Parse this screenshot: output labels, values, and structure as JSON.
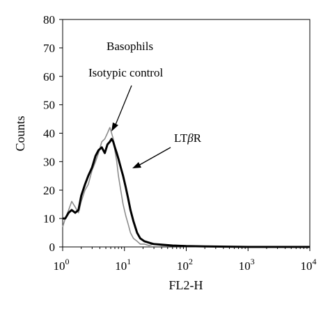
{
  "chart_data": {
    "type": "line",
    "xlabel": "FL2-H",
    "ylabel": "Counts",
    "x_scale": "log",
    "xlim": [
      1,
      10000
    ],
    "ylim": [
      0,
      80
    ],
    "y_ticks": [
      0,
      10,
      20,
      30,
      40,
      50,
      60,
      70,
      80
    ],
    "x_ticks": [
      {
        "value": 1,
        "base": "10",
        "exp": "0"
      },
      {
        "value": 10,
        "base": "10",
        "exp": "1"
      },
      {
        "value": 100,
        "base": "10",
        "exp": "2"
      },
      {
        "value": 1000,
        "base": "10",
        "exp": "3"
      },
      {
        "value": 10000,
        "base": "10",
        "exp": "4"
      }
    ],
    "annotations": {
      "panel_label": "Basophils",
      "isotype": "Isotypic control",
      "ltbr_prefix": "LT",
      "ltbr_greek": "β",
      "ltbr_suffix": "R"
    },
    "series": [
      {
        "name": "Isotypic control",
        "color": "#8c8c8c",
        "x": [
          1.0,
          1.1,
          1.25,
          1.4,
          1.6,
          1.8,
          2.0,
          2.3,
          2.6,
          3.0,
          3.4,
          3.8,
          4.3,
          4.8,
          5.3,
          5.8,
          6.2,
          6.6,
          7.0,
          7.5,
          8.0,
          8.7,
          9.5,
          10.5,
          11.5,
          12.5,
          14.0,
          16.0,
          18.0,
          21.0,
          25.0,
          30.0,
          40.0,
          60.0,
          100.0,
          200.0,
          1000.0,
          10000.0
        ],
        "y": [
          7,
          10,
          13,
          16,
          14,
          12,
          16,
          20,
          22,
          27,
          30,
          33,
          37,
          38,
          40,
          42,
          40,
          38,
          34,
          30,
          25,
          20,
          15,
          11,
          8,
          5,
          3,
          2,
          1,
          1,
          0.5,
          1,
          0.5,
          0.3,
          0.3,
          0.2,
          0,
          0
        ]
      },
      {
        "name": "LTβR",
        "color": "#000000",
        "x": [
          1.0,
          1.1,
          1.25,
          1.4,
          1.6,
          1.8,
          2.0,
          2.3,
          2.6,
          3.0,
          3.4,
          3.8,
          4.3,
          4.8,
          5.3,
          5.8,
          6.2,
          6.6,
          7.0,
          7.5,
          8.0,
          8.7,
          9.5,
          10.5,
          11.5,
          12.5,
          14.0,
          16.0,
          18.0,
          21.0,
          25.0,
          30.0,
          40.0,
          60.0,
          100.0,
          200.0,
          1000.0,
          10000.0
        ],
        "y": [
          10,
          10,
          12,
          13,
          12,
          13,
          18,
          22,
          25,
          28,
          32,
          34,
          35,
          33,
          36,
          37,
          38,
          37,
          35,
          33,
          31,
          28,
          25,
          21,
          17,
          13,
          9,
          5,
          3,
          2,
          1.5,
          1,
          0.8,
          0.5,
          0.3,
          0.2,
          0,
          0
        ]
      }
    ]
  }
}
